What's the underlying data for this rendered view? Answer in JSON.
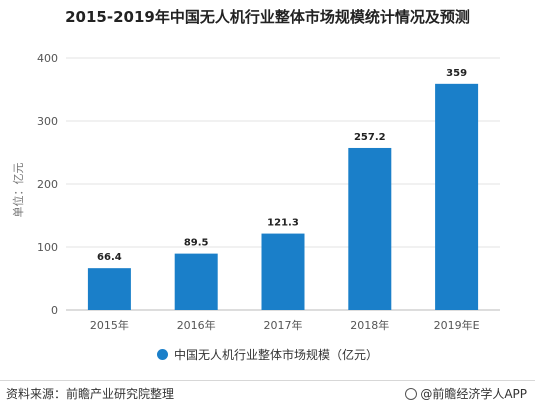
{
  "title": "2015-2019年中国无人机行业整体市场规模统计情况及预测",
  "footer": {
    "source": "资料来源：前瞻产业研究院整理",
    "brand": "@前瞻经济学人APP"
  },
  "colors": {
    "bar": "#1a7fc9",
    "grid": "#e3e3e3"
  },
  "chart_data": {
    "type": "bar",
    "categories": [
      "2015年",
      "2016年",
      "2017年",
      "2018年",
      "2019年E"
    ],
    "series": [
      {
        "name": "中国无人机行业整体市场规模（亿元）",
        "values": [
          66.4,
          89.5,
          121.3,
          257.2,
          359
        ]
      }
    ],
    "data_labels": [
      "66.4",
      "89.5",
      "121.3",
      "257.2",
      "359"
    ],
    "title": "2015-2019年中国无人机行业整体市场规模统计情况及预测",
    "xlabel": "",
    "ylabel": "单位：亿元",
    "ylim": [
      0,
      400
    ],
    "yticks": [
      0,
      100,
      200,
      300,
      400
    ],
    "grid": true,
    "legend": "bottom-center"
  }
}
